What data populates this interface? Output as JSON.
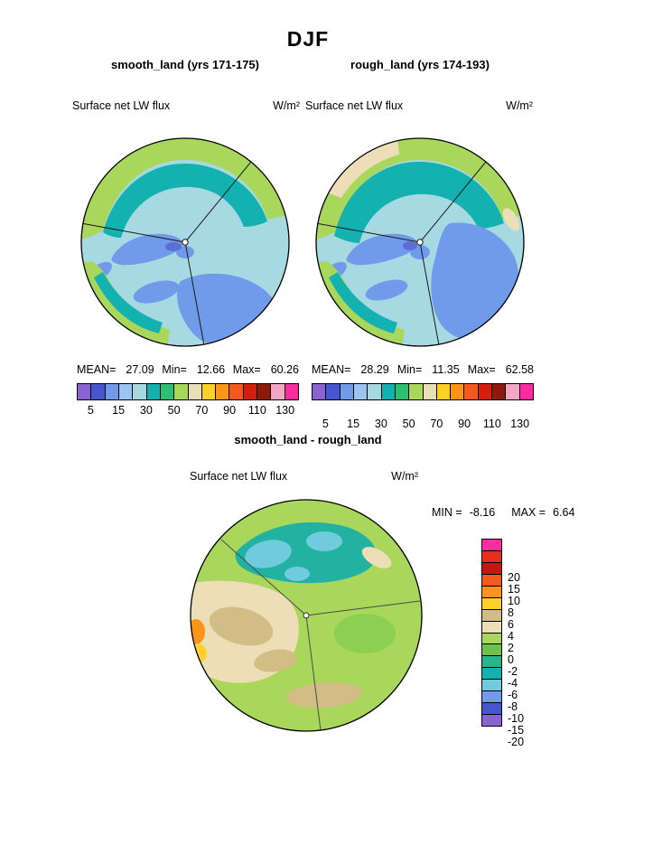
{
  "title": "DJF",
  "panels": [
    {
      "header": "smooth_land (yrs 171-175)",
      "variable": "Surface net LW flux",
      "units": "W/m²",
      "stats": {
        "mean_label": "MEAN=",
        "mean": "27.09",
        "min_label": "Min=",
        "min": "12.66",
        "max_label": "Max=",
        "max": "60.26"
      }
    },
    {
      "header": "rough_land (yrs 174-193)",
      "variable": "Surface net LW flux",
      "units": "W/m²",
      "stats": {
        "mean_label": "MEAN=",
        "mean": "28.29",
        "min_label": "Min=",
        "min": "11.35",
        "max_label": "Max=",
        "max": "62.58"
      }
    }
  ],
  "diff": {
    "header": "smooth_land - rough_land",
    "variable": "Surface net LW flux",
    "units": "W/m²",
    "stats": {
      "min_label": "MIN =",
      "min": "-8.16",
      "max_label": "MAX =",
      "max": "6.64"
    }
  },
  "colorbars": {
    "flux": {
      "orientation": "horizontal",
      "colors": [
        "#8a63d2",
        "#4556cf",
        "#6f9bea",
        "#9cc4f0",
        "#a7d9e2",
        "#13b2b0",
        "#2fbf71",
        "#a9d75b",
        "#ecdfb8",
        "#ffd028",
        "#fb9417",
        "#f4591d",
        "#d21f0f",
        "#8f1a0a",
        "#f2a8c4",
        "#fb2da0"
      ],
      "ticks": [
        "5",
        "15",
        "30",
        "50",
        "70",
        "90",
        "110",
        "130"
      ],
      "tick_positions": [
        6.25,
        18.75,
        31.25,
        43.75,
        56.25,
        68.75,
        81.25,
        93.75
      ]
    },
    "diff": {
      "orientation": "vertical",
      "colors": [
        "#fb2da0",
        "#e62e1e",
        "#c5170d",
        "#f4591d",
        "#fb9417",
        "#ffd028",
        "#d2bd85",
        "#ecdfb8",
        "#a9d75b",
        "#6cc24a",
        "#29b489",
        "#13b2b0",
        "#70cbdd",
        "#6f9bea",
        "#4556cf",
        "#8a63d2"
      ],
      "ticks": [
        "20",
        "15",
        "10",
        "8",
        "6",
        "4",
        "2",
        "0",
        "-2",
        "-4",
        "-6",
        "-8",
        "-10",
        "-15",
        "-20"
      ],
      "tick_positions": [
        6.25,
        12.5,
        18.75,
        25,
        31.25,
        37.5,
        43.75,
        50,
        56.25,
        62.5,
        68.75,
        75,
        81.25,
        87.5,
        93.75
      ]
    }
  },
  "chart_data": [
    {
      "type": "heatmap",
      "title": "smooth_land (yrs 171-175)",
      "season": "DJF",
      "variable": "Surface net LW flux",
      "units": "W/m²",
      "projection": "polar",
      "stats": {
        "mean": 27.09,
        "min": 12.66,
        "max": 60.26
      },
      "contour_levels": [
        5,
        10,
        15,
        20,
        30,
        40,
        50,
        60,
        70,
        80,
        90,
        100,
        110,
        120,
        130
      ],
      "labeled_levels": [
        5,
        15,
        30,
        50,
        70,
        90,
        110,
        130
      ],
      "legend_position": "bottom"
    },
    {
      "type": "heatmap",
      "title": "rough_land (yrs 174-193)",
      "season": "DJF",
      "variable": "Surface net LW flux",
      "units": "W/m²",
      "projection": "polar",
      "stats": {
        "mean": 28.29,
        "min": 11.35,
        "max": 62.58
      },
      "contour_levels": [
        5,
        10,
        15,
        20,
        30,
        40,
        50,
        60,
        70,
        80,
        90,
        100,
        110,
        120,
        130
      ],
      "labeled_levels": [
        5,
        15,
        30,
        50,
        70,
        90,
        110,
        130
      ],
      "legend_position": "bottom"
    },
    {
      "type": "heatmap",
      "title": "smooth_land - rough_land",
      "season": "DJF",
      "variable": "Surface net LW flux",
      "units": "W/m²",
      "projection": "polar",
      "stats": {
        "min": -8.16,
        "max": 6.64
      },
      "contour_levels": [
        -20,
        -15,
        -10,
        -8,
        -6,
        -4,
        -2,
        0,
        2,
        4,
        6,
        8,
        10,
        15,
        20
      ],
      "legend_position": "right"
    }
  ]
}
